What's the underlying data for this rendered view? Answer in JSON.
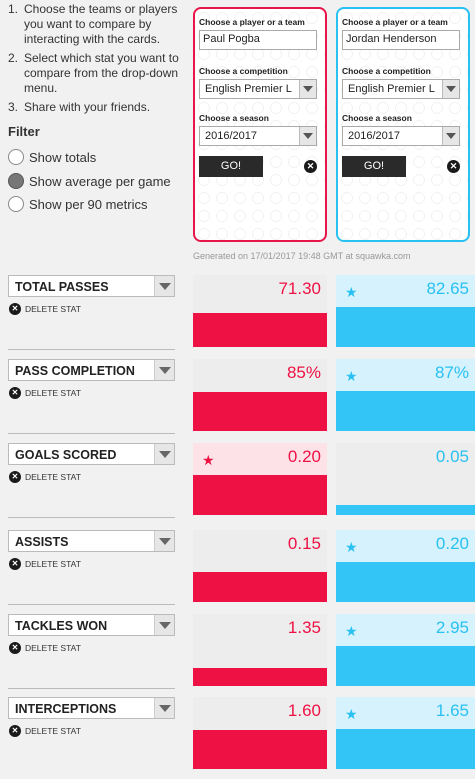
{
  "instructions": [
    {
      "num": "1.",
      "text": "Choose the teams or players you want to compare by interacting with the cards."
    },
    {
      "num": "2.",
      "text": "Select which stat you want to compare from the drop-down menu."
    },
    {
      "num": "3.",
      "text": "Share with your friends."
    }
  ],
  "filter": {
    "title": "Filter",
    "options": [
      {
        "label": "Show totals",
        "checked": false
      },
      {
        "label": "Show average per game",
        "checked": true
      },
      {
        "label": "Show per 90 metrics",
        "checked": false
      }
    ]
  },
  "cards": [
    {
      "color": "#e8174a",
      "player_label": "Choose a player or a team",
      "player_value": "Paul Pogba",
      "competition_label": "Choose a competition",
      "competition_value": "English Premier L",
      "season_label": "Choose a season",
      "season_value": "2016/2017",
      "go_label": "GO!",
      "close_icon": "close-icon"
    },
    {
      "color": "#29c1f1",
      "player_label": "Choose a player or a team",
      "player_value": "Jordan Henderson",
      "competition_label": "Choose a competition",
      "competition_value": "English Premier L",
      "season_label": "Choose a season",
      "season_value": "2016/2017",
      "go_label": "GO!",
      "close_icon": "close-icon"
    }
  ],
  "generated": "Generated on 17/01/2017 19:48 GMT at squawka.com",
  "delete_label": "DELETE STAT",
  "stats": [
    {
      "name": "TOTAL PASSES",
      "left": "71.30",
      "right": "82.65",
      "winner": "right",
      "left_fill": 0.86,
      "right_fill": 1.0
    },
    {
      "name": "PASS COMPLETION",
      "left": "85%",
      "right": "87%",
      "winner": "right",
      "left_fill": 0.98,
      "right_fill": 1.0
    },
    {
      "name": "GOALS SCORED",
      "left": "0.20",
      "right": "0.05",
      "winner": "left",
      "left_fill": 1.0,
      "right_fill": 0.25
    },
    {
      "name": "ASSISTS",
      "left": "0.15",
      "right": "0.20",
      "winner": "right",
      "left_fill": 0.75,
      "right_fill": 1.0
    },
    {
      "name": "TACKLES WON",
      "left": "1.35",
      "right": "2.95",
      "winner": "right",
      "left_fill": 0.46,
      "right_fill": 1.0
    },
    {
      "name": "INTERCEPTIONS",
      "left": "1.60",
      "right": "1.65",
      "winner": "right",
      "left_fill": 0.97,
      "right_fill": 1.0
    }
  ],
  "colors": {
    "red": "#ee1144",
    "blue": "#33c5f5"
  }
}
